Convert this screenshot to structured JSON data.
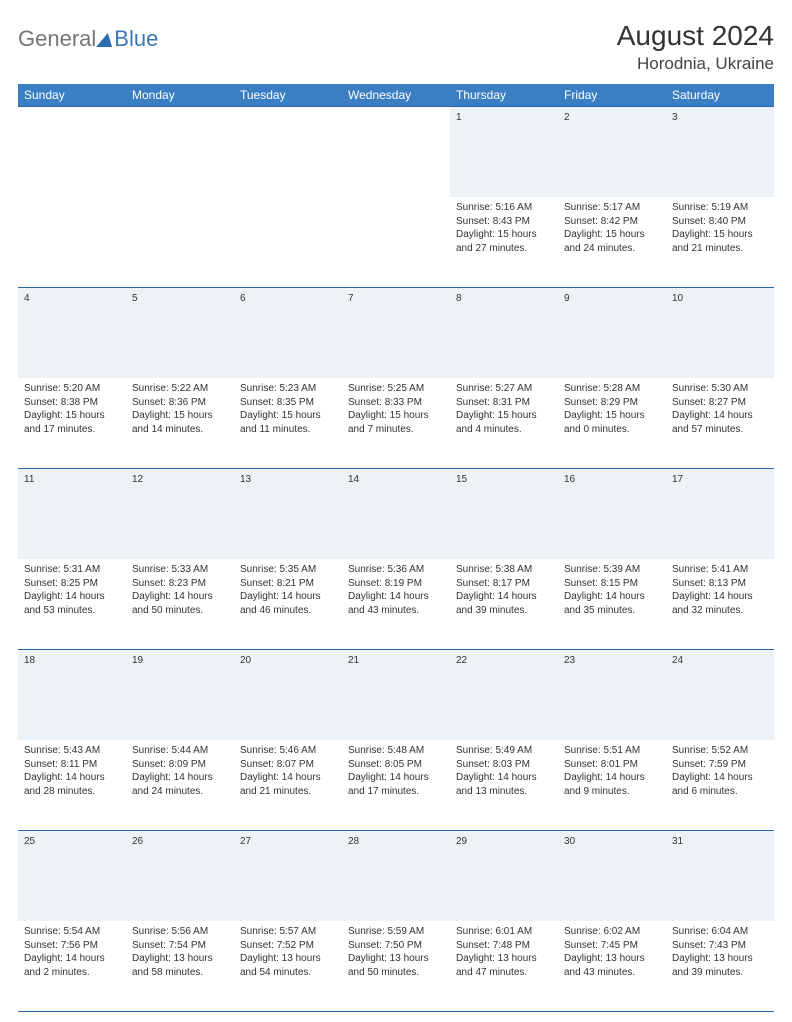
{
  "header": {
    "logo_general": "General",
    "logo_blue": "Blue",
    "title": "August 2024",
    "subtitle": "Horodnia, Ukraine"
  },
  "colors": {
    "header_bg": "#3a7fc4",
    "border": "#2868a8",
    "daynum_bg": "#edf2f6",
    "text": "#333333"
  },
  "day_labels": [
    "Sunday",
    "Monday",
    "Tuesday",
    "Wednesday",
    "Thursday",
    "Friday",
    "Saturday"
  ],
  "weeks": [
    {
      "nums": [
        "",
        "",
        "",
        "",
        "1",
        "2",
        "3"
      ],
      "cells": [
        null,
        null,
        null,
        null,
        {
          "sunrise": "5:16 AM",
          "sunset": "8:43 PM",
          "daylight": "15 hours and 27 minutes."
        },
        {
          "sunrise": "5:17 AM",
          "sunset": "8:42 PM",
          "daylight": "15 hours and 24 minutes."
        },
        {
          "sunrise": "5:19 AM",
          "sunset": "8:40 PM",
          "daylight": "15 hours and 21 minutes."
        }
      ]
    },
    {
      "nums": [
        "4",
        "5",
        "6",
        "7",
        "8",
        "9",
        "10"
      ],
      "cells": [
        {
          "sunrise": "5:20 AM",
          "sunset": "8:38 PM",
          "daylight": "15 hours and 17 minutes."
        },
        {
          "sunrise": "5:22 AM",
          "sunset": "8:36 PM",
          "daylight": "15 hours and 14 minutes."
        },
        {
          "sunrise": "5:23 AM",
          "sunset": "8:35 PM",
          "daylight": "15 hours and 11 minutes."
        },
        {
          "sunrise": "5:25 AM",
          "sunset": "8:33 PM",
          "daylight": "15 hours and 7 minutes."
        },
        {
          "sunrise": "5:27 AM",
          "sunset": "8:31 PM",
          "daylight": "15 hours and 4 minutes."
        },
        {
          "sunrise": "5:28 AM",
          "sunset": "8:29 PM",
          "daylight": "15 hours and 0 minutes."
        },
        {
          "sunrise": "5:30 AM",
          "sunset": "8:27 PM",
          "daylight": "14 hours and 57 minutes."
        }
      ]
    },
    {
      "nums": [
        "11",
        "12",
        "13",
        "14",
        "15",
        "16",
        "17"
      ],
      "cells": [
        {
          "sunrise": "5:31 AM",
          "sunset": "8:25 PM",
          "daylight": "14 hours and 53 minutes."
        },
        {
          "sunrise": "5:33 AM",
          "sunset": "8:23 PM",
          "daylight": "14 hours and 50 minutes."
        },
        {
          "sunrise": "5:35 AM",
          "sunset": "8:21 PM",
          "daylight": "14 hours and 46 minutes."
        },
        {
          "sunrise": "5:36 AM",
          "sunset": "8:19 PM",
          "daylight": "14 hours and 43 minutes."
        },
        {
          "sunrise": "5:38 AM",
          "sunset": "8:17 PM",
          "daylight": "14 hours and 39 minutes."
        },
        {
          "sunrise": "5:39 AM",
          "sunset": "8:15 PM",
          "daylight": "14 hours and 35 minutes."
        },
        {
          "sunrise": "5:41 AM",
          "sunset": "8:13 PM",
          "daylight": "14 hours and 32 minutes."
        }
      ]
    },
    {
      "nums": [
        "18",
        "19",
        "20",
        "21",
        "22",
        "23",
        "24"
      ],
      "cells": [
        {
          "sunrise": "5:43 AM",
          "sunset": "8:11 PM",
          "daylight": "14 hours and 28 minutes."
        },
        {
          "sunrise": "5:44 AM",
          "sunset": "8:09 PM",
          "daylight": "14 hours and 24 minutes."
        },
        {
          "sunrise": "5:46 AM",
          "sunset": "8:07 PM",
          "daylight": "14 hours and 21 minutes."
        },
        {
          "sunrise": "5:48 AM",
          "sunset": "8:05 PM",
          "daylight": "14 hours and 17 minutes."
        },
        {
          "sunrise": "5:49 AM",
          "sunset": "8:03 PM",
          "daylight": "14 hours and 13 minutes."
        },
        {
          "sunrise": "5:51 AM",
          "sunset": "8:01 PM",
          "daylight": "14 hours and 9 minutes."
        },
        {
          "sunrise": "5:52 AM",
          "sunset": "7:59 PM",
          "daylight": "14 hours and 6 minutes."
        }
      ]
    },
    {
      "nums": [
        "25",
        "26",
        "27",
        "28",
        "29",
        "30",
        "31"
      ],
      "cells": [
        {
          "sunrise": "5:54 AM",
          "sunset": "7:56 PM",
          "daylight": "14 hours and 2 minutes."
        },
        {
          "sunrise": "5:56 AM",
          "sunset": "7:54 PM",
          "daylight": "13 hours and 58 minutes."
        },
        {
          "sunrise": "5:57 AM",
          "sunset": "7:52 PM",
          "daylight": "13 hours and 54 minutes."
        },
        {
          "sunrise": "5:59 AM",
          "sunset": "7:50 PM",
          "daylight": "13 hours and 50 minutes."
        },
        {
          "sunrise": "6:01 AM",
          "sunset": "7:48 PM",
          "daylight": "13 hours and 47 minutes."
        },
        {
          "sunrise": "6:02 AM",
          "sunset": "7:45 PM",
          "daylight": "13 hours and 43 minutes."
        },
        {
          "sunrise": "6:04 AM",
          "sunset": "7:43 PM",
          "daylight": "13 hours and 39 minutes."
        }
      ]
    }
  ],
  "labels": {
    "sunrise": "Sunrise:",
    "sunset": "Sunset:",
    "daylight": "Daylight:"
  }
}
